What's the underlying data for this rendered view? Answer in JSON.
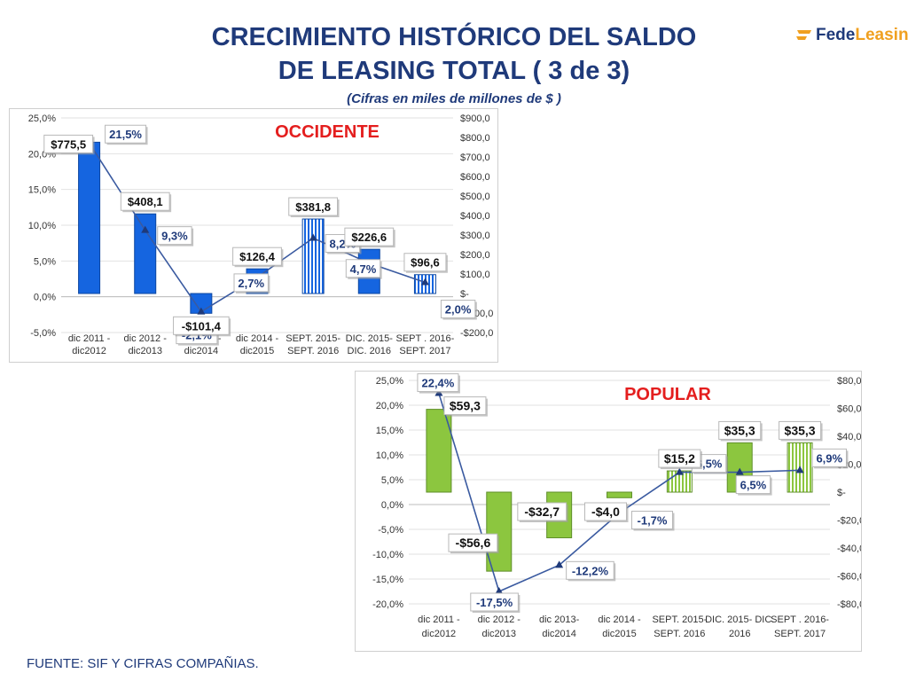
{
  "header": {
    "title_line1": "CRECIMIENTO HISTÓRICO DEL SALDO",
    "title_line2": "DE LEASING TOTAL  ( 3 de 3)",
    "subtitle": "(Cifras en miles de millones de $ )"
  },
  "logo": {
    "text_part1": "Fede",
    "text_part2": "Leasing",
    "icon": "fedeleasing-logo-icon"
  },
  "source": "FUENTE: SIF Y CIFRAS COMPAÑIAS.",
  "colors": {
    "title": "#1f3a7a",
    "occidente_bar": "#1565e0",
    "popular_bar": "#8cc63f",
    "line": "#3a5aa0",
    "chart_title": "#e41e1e"
  },
  "chart_data": [
    {
      "type": "bar",
      "title": "OCCIDENTE",
      "categories": [
        [
          "dic 2011 -",
          "dic2012"
        ],
        [
          "dic 2012 -",
          "dic2013"
        ],
        [
          "dic 2013-",
          "dic2014"
        ],
        [
          "dic 2014 -",
          "dic2015"
        ],
        [
          "SEPT. 2015-",
          "SEPT. 2016"
        ],
        [
          "DIC. 2015-",
          "DIC. 2016"
        ],
        [
          "SEPT . 2016-",
          "SEPT. 2017"
        ]
      ],
      "bar_values": [
        775.5,
        408.1,
        -101.4,
        126.4,
        381.8,
        226.6,
        96.6
      ],
      "bar_labels": [
        "$775,5",
        "$408,1",
        "-$101,4",
        "$126,4",
        "$381,8",
        "$226,6",
        "$96,6"
      ],
      "bar_patterns": [
        "solid",
        "solid",
        "solid",
        "solid",
        "striped",
        "solid",
        "striped"
      ],
      "line_values": [
        21.5,
        9.3,
        -2.1,
        2.7,
        8.2,
        4.7,
        2.0
      ],
      "line_labels": [
        "21,5%",
        "9,3%",
        "-2,1%",
        "2,7%",
        "8,2%",
        "4,7%",
        "2,0%"
      ],
      "y_left": {
        "range": [
          -5,
          25
        ],
        "ticks": [
          "25,0%",
          "20,0%",
          "15,0%",
          "10,0%",
          "5,0%",
          "0,0%",
          "-5,0%"
        ]
      },
      "y_right": {
        "range": [
          -200,
          900
        ],
        "ticks": [
          "$900,0",
          "$800,0",
          "$700,0",
          "$600,0",
          "$500,0",
          "$400,0",
          "$300,0",
          "$200,0",
          "$100,0",
          "$-",
          "-$100,0",
          "-$200,0"
        ]
      }
    },
    {
      "type": "bar",
      "title": "POPULAR",
      "categories": [
        [
          "dic 2011 -",
          "dic2012"
        ],
        [
          "dic 2012 -",
          "dic2013"
        ],
        [
          "dic 2013-",
          "dic2014"
        ],
        [
          "dic 2014 -",
          "dic2015"
        ],
        [
          "SEPT. 2015-",
          "SEPT. 2016"
        ],
        [
          "DIC. 2015- DIC.",
          "2016"
        ],
        [
          "SEPT . 2016-",
          "SEPT. 2017"
        ]
      ],
      "bar_values": [
        59.3,
        -56.6,
        -32.7,
        -4.0,
        15.2,
        35.3,
        35.3
      ],
      "bar_labels": [
        "$59,3",
        "-$56,6",
        "-$32,7",
        "-$4,0",
        "$15,2",
        "$35,3",
        "$35,3"
      ],
      "bar_patterns": [
        "solid",
        "solid",
        "solid",
        "solid",
        "striped",
        "solid",
        "striped"
      ],
      "line_values": [
        22.4,
        -17.5,
        -12.2,
        -1.7,
        6.5,
        6.5,
        6.9
      ],
      "line_labels": [
        "22,4%",
        "-17,5%",
        "-12,2%",
        "-1,7%",
        "6,5%",
        "6,5%",
        "6,9%"
      ],
      "y_left": {
        "range": [
          -20,
          25
        ],
        "ticks": [
          "25,0%",
          "20,0%",
          "15,0%",
          "10,0%",
          "5,0%",
          "0,0%",
          "-5,0%",
          "-10,0%",
          "-15,0%",
          "-20,0%"
        ]
      },
      "y_right": {
        "range": [
          -80,
          80
        ],
        "ticks": [
          "$80,0",
          "$60,0",
          "$40,0",
          "$20,0",
          "$-",
          "-$20,0",
          "-$40,0",
          "-$60,0",
          "-$80,0"
        ]
      }
    }
  ]
}
